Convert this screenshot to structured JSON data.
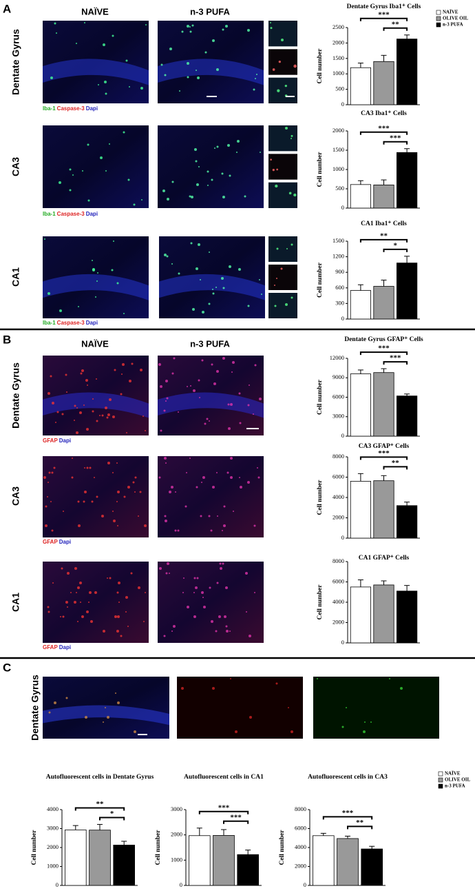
{
  "panel_labels": [
    "A",
    "B",
    "C"
  ],
  "column_headers": [
    "NAÏVE",
    "n-3 PUFA"
  ],
  "row_labels": [
    "Dentate Gyrus",
    "CA3",
    "CA1"
  ],
  "stains": {
    "iba": [
      "Iba-1",
      "Caspase-3",
      "Dapi"
    ],
    "gfap": [
      "GFAP",
      "Dapi"
    ]
  },
  "groups": [
    {
      "name": "NAÏVE",
      "color": "#ffffff"
    },
    {
      "name": "OLIVE OIL",
      "color": "#999999"
    },
    {
      "name": "n-3 PUFA",
      "color": "#000000"
    }
  ],
  "chart_data": [
    {
      "type": "bar",
      "title": "Dentate Gyrus Iba1⁺ Cells",
      "y_label": "Cell number",
      "values": [
        1200,
        1400,
        2130
      ],
      "errors": [
        150,
        200,
        130
      ],
      "ylim": [
        0,
        2500
      ],
      "yticks": [
        0,
        500,
        1000,
        1500,
        2000,
        2500
      ],
      "significance": [
        {
          "from": 0,
          "to": 2,
          "label": "***"
        },
        {
          "from": 1,
          "to": 2,
          "label": "**"
        }
      ],
      "legend": true
    },
    {
      "type": "bar",
      "title": "CA3 Iba1⁺ Cells",
      "y_label": "Cell number",
      "values": [
        610,
        600,
        1440
      ],
      "errors": [
        100,
        130,
        100
      ],
      "ylim": [
        0,
        2000
      ],
      "yticks": [
        0,
        500,
        1000,
        1500,
        2000
      ],
      "significance": [
        {
          "from": 0,
          "to": 2,
          "label": "***"
        },
        {
          "from": 1,
          "to": 2,
          "label": "***"
        }
      ],
      "legend": false
    },
    {
      "type": "bar",
      "title": "CA1 Iba1⁺ Cells",
      "y_label": "Cell number",
      "values": [
        550,
        630,
        1080
      ],
      "errors": [
        110,
        120,
        130
      ],
      "ylim": [
        0,
        1500
      ],
      "yticks": [
        0,
        300,
        600,
        900,
        1200,
        1500
      ],
      "significance": [
        {
          "from": 0,
          "to": 2,
          "label": "**"
        },
        {
          "from": 1,
          "to": 2,
          "label": "*"
        }
      ],
      "legend": false
    },
    {
      "type": "bar",
      "title": "Dentate Gyrus GFAP⁺ Cells",
      "y_label": "Cell number",
      "values": [
        9600,
        9800,
        6200
      ],
      "errors": [
        600,
        600,
        300
      ],
      "ylim": [
        0,
        12000
      ],
      "yticks": [
        0,
        3000,
        6000,
        9000,
        12000
      ],
      "significance": [
        {
          "from": 0,
          "to": 2,
          "label": "***"
        },
        {
          "from": 1,
          "to": 2,
          "label": "***"
        }
      ],
      "legend": false
    },
    {
      "type": "bar",
      "title": "CA3 GFAP⁺ Cells",
      "y_label": "Cell number",
      "values": [
        5600,
        5650,
        3200
      ],
      "errors": [
        750,
        500,
        350
      ],
      "ylim": [
        0,
        8000
      ],
      "yticks": [
        0,
        2000,
        4000,
        6000,
        8000
      ],
      "significance": [
        {
          "from": 0,
          "to": 2,
          "label": "***"
        },
        {
          "from": 1,
          "to": 2,
          "label": "**"
        }
      ],
      "legend": false
    },
    {
      "type": "bar",
      "title": "CA1 GFAP⁺ Cells",
      "y_label": "Cell number",
      "values": [
        5500,
        5700,
        5100
      ],
      "errors": [
        700,
        400,
        550
      ],
      "ylim": [
        0,
        8000
      ],
      "yticks": [
        0,
        2000,
        4000,
        6000,
        8000
      ],
      "significance": [],
      "legend": false
    },
    {
      "type": "bar",
      "title": "Autofluorescent cells in Dentate Gyrus",
      "y_label": "Cell number",
      "values": [
        2930,
        2920,
        2130
      ],
      "errors": [
        230,
        300,
        200
      ],
      "ylim": [
        0,
        4000
      ],
      "yticks": [
        0,
        1000,
        2000,
        3000,
        4000
      ],
      "significance": [
        {
          "from": 0,
          "to": 2,
          "label": "**"
        },
        {
          "from": 1,
          "to": 2,
          "label": "*"
        }
      ],
      "legend": false
    },
    {
      "type": "bar",
      "title": "Autofluorescent cells in CA1",
      "y_label": "Cell number",
      "values": [
        1970,
        1980,
        1220
      ],
      "errors": [
        300,
        230,
        180
      ],
      "ylim": [
        0,
        3000
      ],
      "yticks": [
        0,
        1000,
        2000,
        3000
      ],
      "significance": [
        {
          "from": 0,
          "to": 2,
          "label": "***"
        },
        {
          "from": 1,
          "to": 2,
          "label": "***"
        }
      ],
      "legend": false
    },
    {
      "type": "bar",
      "title": "Autofluorescent cells in CA3",
      "y_label": "Cell number",
      "values": [
        5250,
        4950,
        3850
      ],
      "errors": [
        250,
        250,
        280
      ],
      "ylim": [
        0,
        8000
      ],
      "yticks": [
        0,
        2000,
        4000,
        6000,
        8000
      ],
      "significance": [
        {
          "from": 0,
          "to": 2,
          "label": "***"
        },
        {
          "from": 1,
          "to": 2,
          "label": "**"
        }
      ],
      "legend": true
    }
  ]
}
